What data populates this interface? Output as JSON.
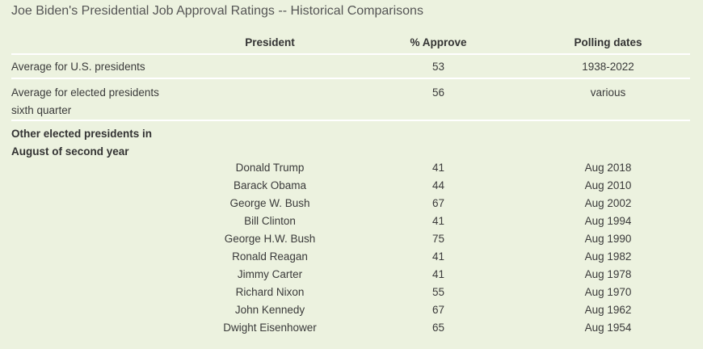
{
  "title": "Joe Biden's Presidential Job Approval Ratings -- Historical Comparisons",
  "headers": {
    "president": "President",
    "approve": "% Approve",
    "dates": "Polling dates"
  },
  "average_us": {
    "label": "Average for U.S. presidents",
    "approve": "53",
    "dates": "1938-2022"
  },
  "average_elected": {
    "label_line1": "Average for elected presidents",
    "label_line2": "sixth quarter",
    "approve": "56",
    "dates": "various"
  },
  "section": {
    "line1": "Other elected presidents in",
    "line2": "August of second year"
  },
  "rows": [
    {
      "president": "Donald Trump",
      "approve": "41",
      "dates": "Aug 2018"
    },
    {
      "president": "Barack Obama",
      "approve": "44",
      "dates": "Aug 2010"
    },
    {
      "president": "George W. Bush",
      "approve": "67",
      "dates": "Aug 2002"
    },
    {
      "president": "Bill Clinton",
      "approve": "41",
      "dates": "Aug 1994"
    },
    {
      "president": "George H.W. Bush",
      "approve": "75",
      "dates": "Aug 1990"
    },
    {
      "president": "Ronald Reagan",
      "approve": "41",
      "dates": "Aug 1982"
    },
    {
      "president": "Jimmy Carter",
      "approve": "41",
      "dates": "Aug 1978"
    },
    {
      "president": "Richard Nixon",
      "approve": "55",
      "dates": "Aug 1970"
    },
    {
      "president": "John Kennedy",
      "approve": "67",
      "dates": "Aug 1962"
    },
    {
      "president": "Dwight Eisenhower",
      "approve": "65",
      "dates": "Aug 1954"
    }
  ]
}
